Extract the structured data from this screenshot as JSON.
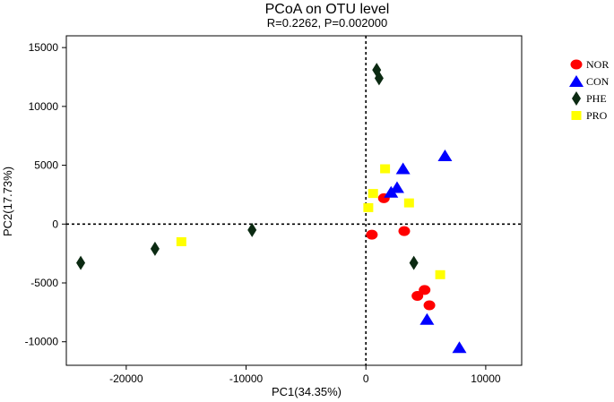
{
  "chart_data": {
    "type": "scatter",
    "title": "PCoA on OTU level",
    "subtitle": "R=0.2262, P=0.002000",
    "xlabel": "PC1(34.35%)",
    "ylabel": "PC2(17.73%)",
    "xlim": [
      -25000,
      13000
    ],
    "ylim": [
      -12000,
      16000
    ],
    "xticks": [
      -20000,
      -10000,
      0,
      10000
    ],
    "yticks": [
      -10000,
      -5000,
      0,
      5000,
      10000,
      15000
    ],
    "reference_lines": {
      "x": 0,
      "y": 0,
      "style": "dotted"
    },
    "legend_position": "right",
    "series": [
      {
        "name": "NOR",
        "marker": "circle",
        "color": "#ff0000",
        "points": [
          [
            1500,
            2200
          ],
          [
            500,
            -900
          ],
          [
            3200,
            -600
          ],
          [
            4300,
            -6100
          ],
          [
            4900,
            -5600
          ],
          [
            5300,
            -6900
          ]
        ]
      },
      {
        "name": "CON",
        "marker": "triangle",
        "color": "#0000ff",
        "points": [
          [
            2600,
            3100
          ],
          [
            2100,
            2700
          ],
          [
            3100,
            4700
          ],
          [
            6600,
            5800
          ],
          [
            5100,
            -8100
          ],
          [
            7800,
            -10500
          ]
        ]
      },
      {
        "name": "PHE",
        "marker": "diamond",
        "color": "#0b2a12",
        "points": [
          [
            -23800,
            -3300
          ],
          [
            -17600,
            -2100
          ],
          [
            -9500,
            -500
          ],
          [
            900,
            13100
          ],
          [
            1100,
            12400
          ],
          [
            4000,
            -3300
          ]
        ]
      },
      {
        "name": "PRO",
        "marker": "square",
        "color": "#ffff00",
        "points": [
          [
            -15400,
            -1500
          ],
          [
            200,
            1400
          ],
          [
            600,
            2600
          ],
          [
            1600,
            4700
          ],
          [
            3600,
            1800
          ],
          [
            6200,
            -4300
          ]
        ]
      }
    ]
  }
}
